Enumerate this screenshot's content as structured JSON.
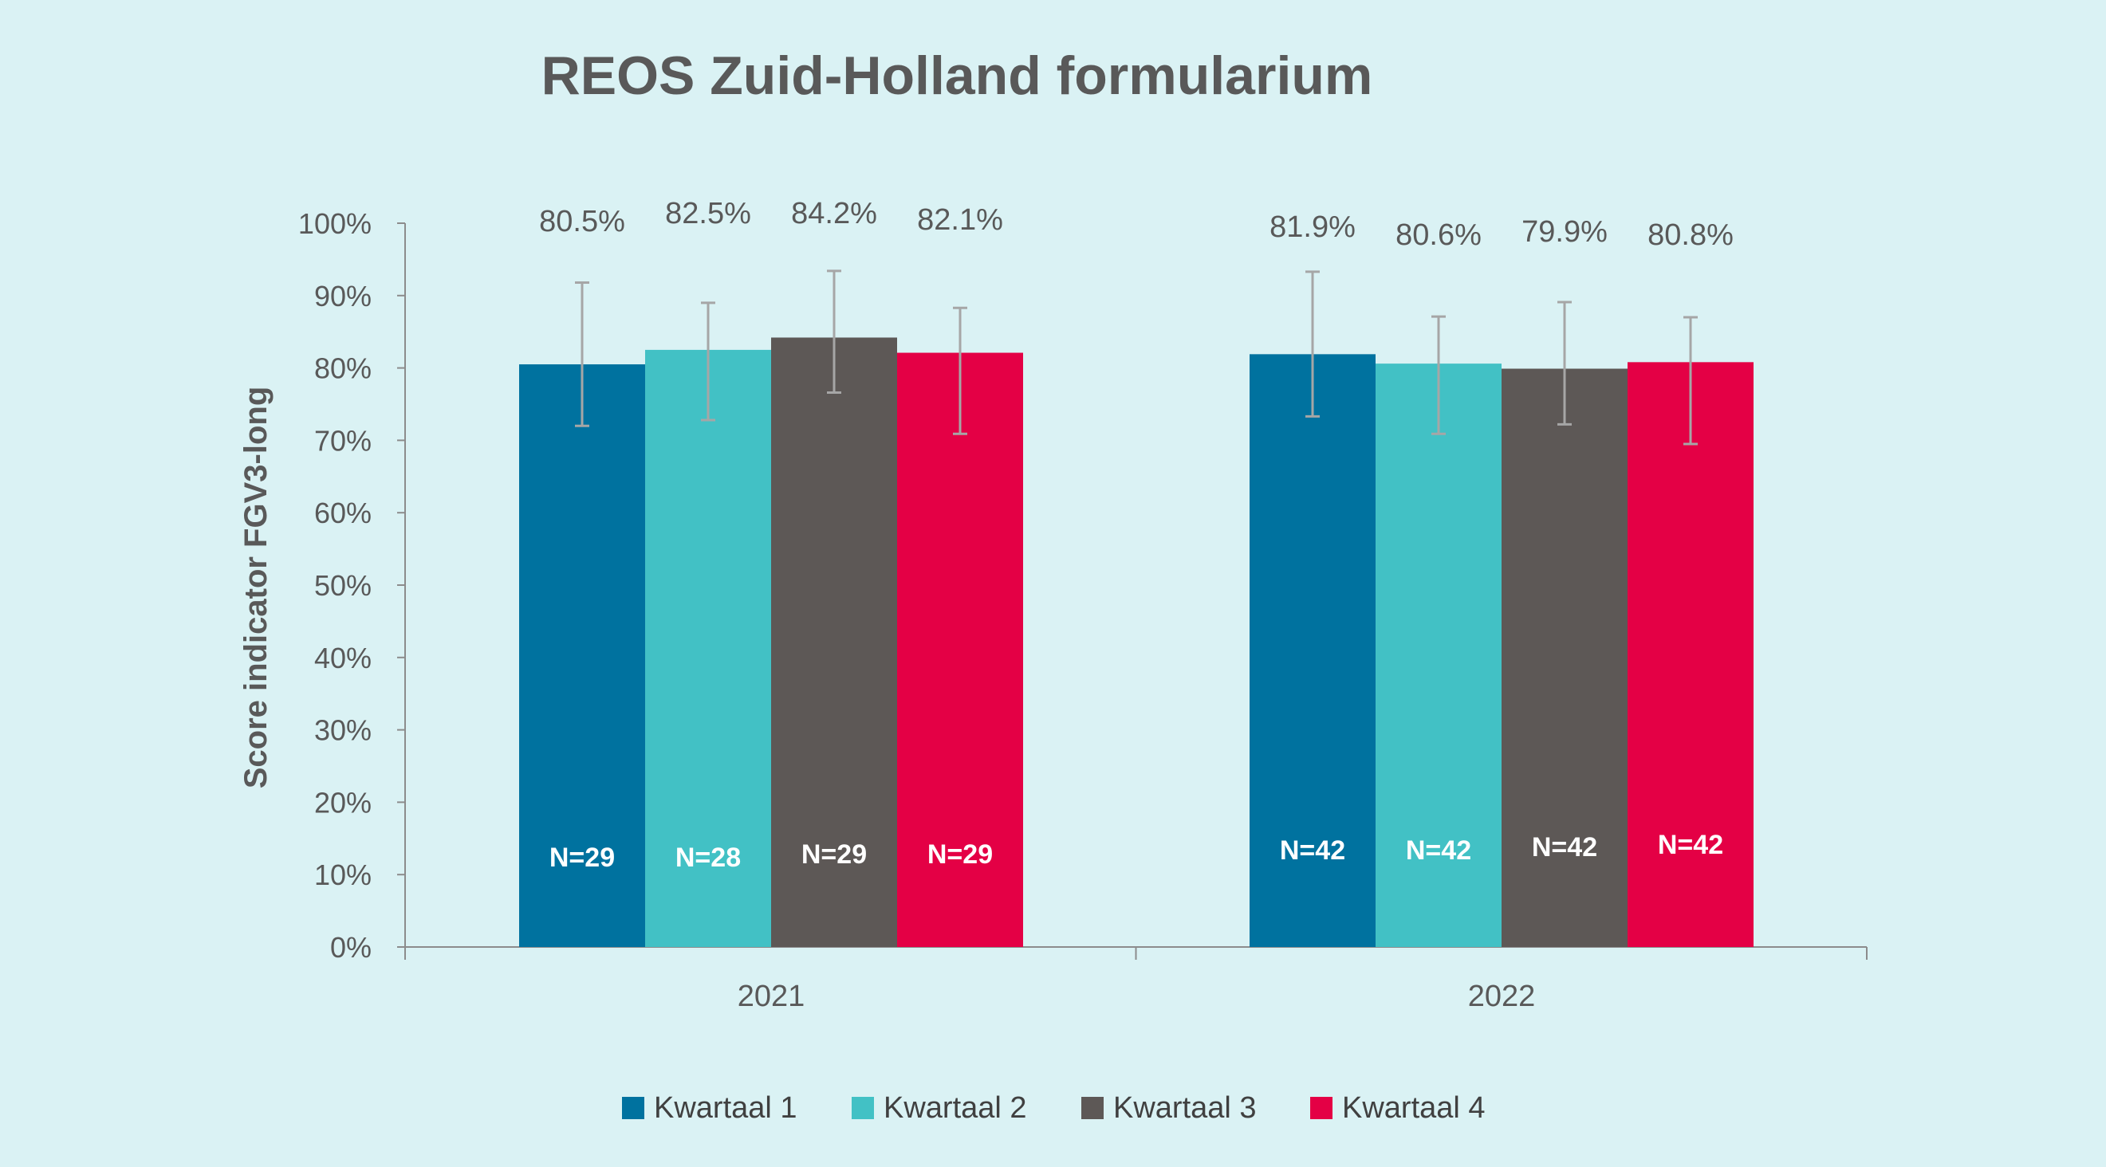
{
  "chart_data": {
    "type": "bar",
    "title": "REOS Zuid-Holland formularium",
    "xlabel": "",
    "ylabel": "Score indicator FGV3-long",
    "ylim": [
      0,
      100
    ],
    "yticks": [
      "0%",
      "10%",
      "20%",
      "30%",
      "40%",
      "50%",
      "60%",
      "70%",
      "80%",
      "90%",
      "100%"
    ],
    "categories": [
      "2021",
      "2022"
    ],
    "legend_position": "bottom",
    "grid": false,
    "series": [
      {
        "name": "Kwartaal 1",
        "color": "#00729f",
        "values": [
          80.5,
          81.9
        ],
        "labels": [
          "80.5%",
          "81.9%"
        ],
        "n": [
          "N=29",
          "N=42"
        ],
        "err_low": [
          72.0,
          73.3
        ],
        "err_high": [
          91.8,
          93.3
        ]
      },
      {
        "name": "Kwartaal 2",
        "color": "#42c1c5",
        "values": [
          82.5,
          80.6
        ],
        "labels": [
          "82.5%",
          "80.6%"
        ],
        "n": [
          "N=28",
          "N=42"
        ],
        "err_low": [
          72.8,
          70.9
        ],
        "err_high": [
          89.0,
          87.1
        ]
      },
      {
        "name": "Kwartaal 3",
        "color": "#5d5856",
        "values": [
          84.2,
          79.9
        ],
        "labels": [
          "84.2%",
          "79.9%"
        ],
        "n": [
          "N=29",
          "N=42"
        ],
        "err_low": [
          76.6,
          72.2
        ],
        "err_high": [
          93.4,
          89.1
        ]
      },
      {
        "name": "Kwartaal 4",
        "color": "#e40045",
        "values": [
          82.1,
          80.8
        ],
        "labels": [
          "82.1%",
          "80.8%"
        ],
        "n": [
          "N=29",
          "N=42"
        ],
        "err_low": [
          70.9,
          69.5
        ],
        "err_high": [
          88.3,
          87.0
        ]
      }
    ]
  }
}
